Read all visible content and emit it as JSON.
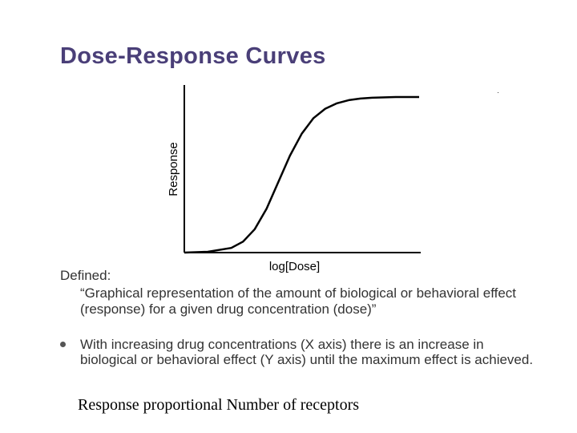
{
  "slide": {
    "title": "Dose-Response Curves",
    "defined_label": "Defined:",
    "definition_quote": "“Graphical representation of the amount of biological or behavioral effect (response) for a given drug concentration (dose)”",
    "bullets": [
      "With increasing drug concentrations (X axis) there is an increase in biological or behavioral effect (Y axis) until the maximum effect is achieved."
    ],
    "footer_text": "Response proportional Number of receptors"
  },
  "chart_data": {
    "type": "line",
    "title": "",
    "xlabel": "log[Dose]",
    "ylabel": "Response",
    "xlim": [
      0,
      10
    ],
    "ylim": [
      0,
      1
    ],
    "grid": false,
    "series": [
      {
        "x": [
          0,
          1,
          2,
          2.5,
          3,
          3.5,
          4,
          4.5,
          5,
          5.5,
          6,
          6.5,
          7,
          7.5,
          8,
          9,
          10
        ],
        "values": [
          0.0,
          0.005,
          0.03,
          0.07,
          0.15,
          0.28,
          0.45,
          0.62,
          0.76,
          0.86,
          0.92,
          0.955,
          0.975,
          0.985,
          0.99,
          0.995,
          0.995
        ]
      }
    ],
    "colors": {
      "curve": "#000000",
      "axis": "#000000"
    }
  }
}
